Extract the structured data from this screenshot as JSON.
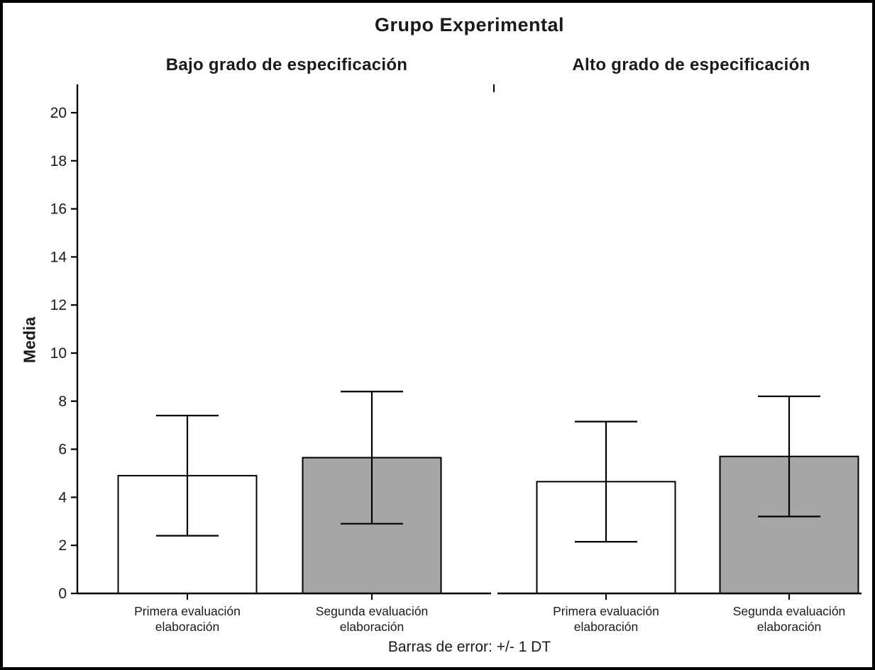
{
  "chart_data": {
    "type": "bar",
    "title": "Grupo Experimental",
    "ylabel": "Media",
    "ylim": [
      0,
      20
    ],
    "ytick_step": 2,
    "ytick_labels": [
      "0",
      "2",
      "4",
      "6",
      "8",
      "10",
      "12",
      "14",
      "16",
      "18",
      "20"
    ],
    "footnote": "Barras de error: +/- 1 DT",
    "error_bar_meaning": "+/- 1 DT",
    "legend_position": "none",
    "grid": false,
    "colors": {
      "bar_white": "#ffffff",
      "bar_gray": "#a6a6a6",
      "stroke": "#000000"
    },
    "panels": [
      {
        "header": "Bajo grado de especificación",
        "bars": [
          {
            "category": "Primera evaluación elaboración",
            "label_lines": [
              "Primera evaluación",
              "elaboración"
            ],
            "mean": 4.9,
            "sd": 2.5,
            "fill": "#ffffff"
          },
          {
            "category": "Segunda evaluación elaboración",
            "label_lines": [
              "Segunda evaluación",
              "elaboración"
            ],
            "mean": 5.65,
            "sd": 2.75,
            "fill": "#a6a6a6"
          }
        ]
      },
      {
        "header": "Alto grado de especificación",
        "bars": [
          {
            "category": "Primera evaluación elaboración",
            "label_lines": [
              "Primera evaluación",
              "elaboración"
            ],
            "mean": 4.65,
            "sd": 2.5,
            "fill": "#ffffff"
          },
          {
            "category": "Segunda evaluación elaboración",
            "label_lines": [
              "Segunda evaluación",
              "elaboración"
            ],
            "mean": 5.7,
            "sd": 2.5,
            "fill": "#a6a6a6"
          }
        ]
      }
    ]
  }
}
